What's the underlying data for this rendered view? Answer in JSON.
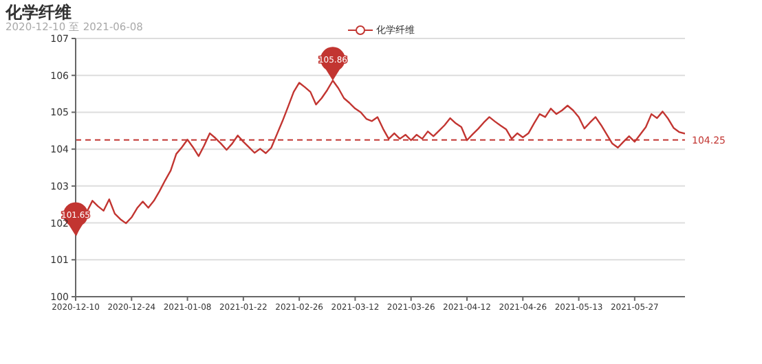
{
  "chart_data": {
    "type": "line",
    "title": "化学纤维",
    "subtitle": "2020-12-10 至 2021-06-08",
    "categories": [
      "2020-12-10",
      null,
      null,
      null,
      null,
      null,
      null,
      null,
      null,
      null,
      "2020-12-24",
      null,
      null,
      null,
      null,
      null,
      null,
      null,
      null,
      null,
      "2021-01-08",
      null,
      null,
      null,
      null,
      null,
      null,
      null,
      null,
      null,
      "2021-01-22",
      null,
      null,
      null,
      null,
      null,
      null,
      null,
      null,
      null,
      "2021-02-26",
      null,
      null,
      null,
      null,
      null,
      null,
      null,
      null,
      null,
      "2021-03-12",
      null,
      null,
      null,
      null,
      null,
      null,
      null,
      null,
      null,
      "2021-03-26",
      null,
      null,
      null,
      null,
      null,
      null,
      null,
      null,
      null,
      "2021-04-12",
      null,
      null,
      null,
      null,
      null,
      null,
      null,
      null,
      null,
      "2021-04-26",
      null,
      null,
      null,
      null,
      null,
      null,
      null,
      null,
      null,
      "2021-05-13",
      null,
      null,
      null,
      null,
      null,
      null,
      null,
      null,
      null,
      "2021-05-27",
      null,
      null,
      null,
      null,
      null,
      null,
      null,
      null,
      null
    ],
    "series": [
      {
        "name": "化学纤维",
        "color": "#c23531",
        "values": [
          101.65,
          102.0,
          102.3,
          102.6,
          102.45,
          102.33,
          102.64,
          102.25,
          102.1,
          101.99,
          102.15,
          102.4,
          102.58,
          102.41,
          102.6,
          102.86,
          103.15,
          103.42,
          103.87,
          104.05,
          104.26,
          104.05,
          103.81,
          104.1,
          104.43,
          104.3,
          104.15,
          103.98,
          104.15,
          104.37,
          104.2,
          104.05,
          103.9,
          104.01,
          103.89,
          104.04,
          104.4,
          104.76,
          105.15,
          105.55,
          105.8,
          105.68,
          105.55,
          105.21,
          105.38,
          105.6,
          105.86,
          105.65,
          105.38,
          105.25,
          105.1,
          105.0,
          104.82,
          104.76,
          104.87,
          104.55,
          104.28,
          104.43,
          104.28,
          104.39,
          104.24,
          104.39,
          104.28,
          104.48,
          104.35,
          104.5,
          104.65,
          104.84,
          104.7,
          104.6,
          104.24,
          104.4,
          104.55,
          104.72,
          104.87,
          104.75,
          104.64,
          104.54,
          104.28,
          104.43,
          104.32,
          104.43,
          104.7,
          104.95,
          104.87,
          105.1,
          104.95,
          105.05,
          105.18,
          105.05,
          104.87,
          104.56,
          104.72,
          104.87,
          104.65,
          104.4,
          104.15,
          104.04,
          104.2,
          104.35,
          104.2,
          104.4,
          104.6,
          104.95,
          104.84,
          105.02,
          104.82,
          104.57,
          104.46,
          104.42
        ]
      }
    ],
    "ylim": [
      100,
      107
    ],
    "yticks": [
      100,
      101,
      102,
      103,
      104,
      105,
      106,
      107
    ],
    "grid": "y",
    "legend": "top",
    "marker": "none",
    "line_style": "solid",
    "ref_lines": [
      {
        "axis": "y",
        "value": 104.25,
        "label": "104.25",
        "color": "#c23531",
        "line_style": "dashed"
      }
    ],
    "annotations": [
      {
        "text": "101.65",
        "x": "2020-12-10",
        "y": 101.65
      },
      {
        "text": "105.86",
        "y": 105.86
      }
    ]
  }
}
